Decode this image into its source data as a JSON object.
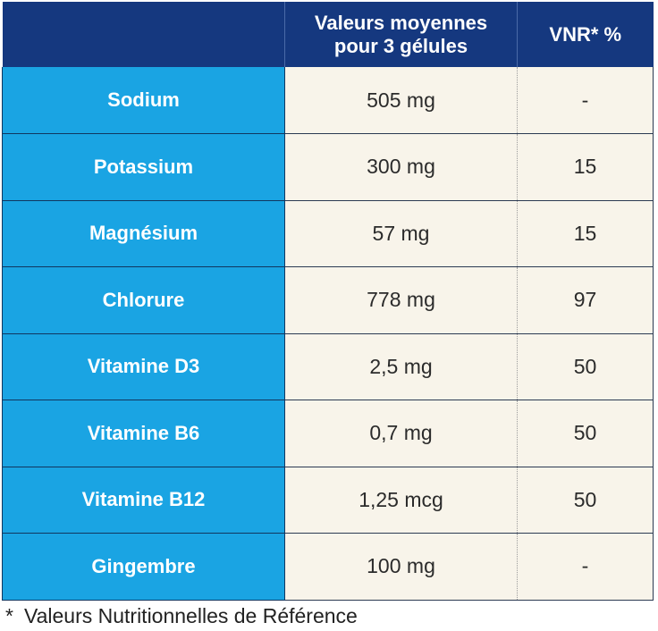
{
  "header": {
    "col1": "",
    "col2_line1": "Valeurs moyennes",
    "col2_line2": "pour 3 gélules",
    "col3": "VNR* %"
  },
  "rows": [
    {
      "name": "Sodium",
      "amount": "505 mg",
      "vnr": "-"
    },
    {
      "name": "Potassium",
      "amount": "300 mg",
      "vnr": "15"
    },
    {
      "name": "Magnésium",
      "amount": "57 mg",
      "vnr": "15"
    },
    {
      "name": "Chlorure",
      "amount": "778 mg",
      "vnr": "97"
    },
    {
      "name": "Vitamine D3",
      "amount": "2,5 mg",
      "vnr": "50"
    },
    {
      "name": "Vitamine B6",
      "amount": "0,7 mg",
      "vnr": "50"
    },
    {
      "name": "Vitamine B12",
      "amount": "1,25 mcg",
      "vnr": "50"
    },
    {
      "name": "Gingembre",
      "amount": "100 mg",
      "vnr": "-"
    }
  ],
  "footnote": {
    "marker": "*",
    "text": "Valeurs Nutritionnelles de Référence"
  },
  "colors": {
    "header_bg": "#15387f",
    "name_cell_bg": "#1aa4e3",
    "value_cell_bg": "#f8f4ea"
  }
}
